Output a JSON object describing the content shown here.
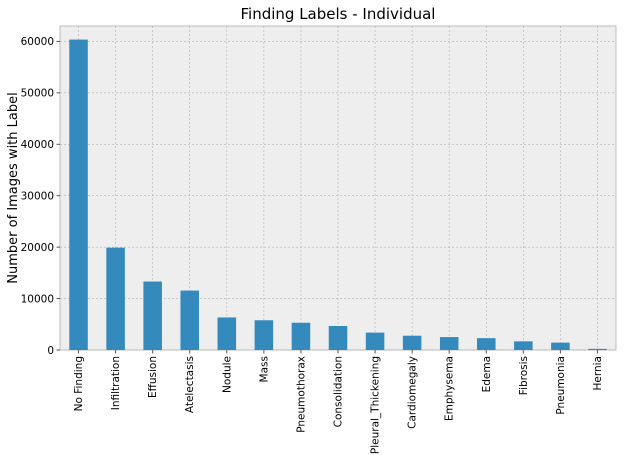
{
  "chart_data": {
    "type": "bar",
    "title": "Finding Labels - Individual",
    "xlabel": "",
    "ylabel": "Number of Images with Label",
    "categories": [
      "No Finding",
      "Infiltration",
      "Effusion",
      "Atelectasis",
      "Nodule",
      "Mass",
      "Pneumothorax",
      "Consolidation",
      "Pleural_Thickening",
      "Cardiomegaly",
      "Emphysema",
      "Edema",
      "Fibrosis",
      "Pneumonia",
      "Hernia"
    ],
    "values": [
      60361,
      19894,
      13317,
      11559,
      6331,
      5782,
      5302,
      4667,
      3385,
      2776,
      2516,
      2303,
      1686,
      1431,
      227
    ],
    "ylim": [
      0,
      63000
    ],
    "yticks": [
      0,
      10000,
      20000,
      30000,
      40000,
      50000,
      60000
    ],
    "grid": true,
    "colors": {
      "bar": "#348abd",
      "plot_background": "#eeeeee",
      "grid": "#b2b2b2",
      "spine": "#bcbcbc"
    }
  }
}
